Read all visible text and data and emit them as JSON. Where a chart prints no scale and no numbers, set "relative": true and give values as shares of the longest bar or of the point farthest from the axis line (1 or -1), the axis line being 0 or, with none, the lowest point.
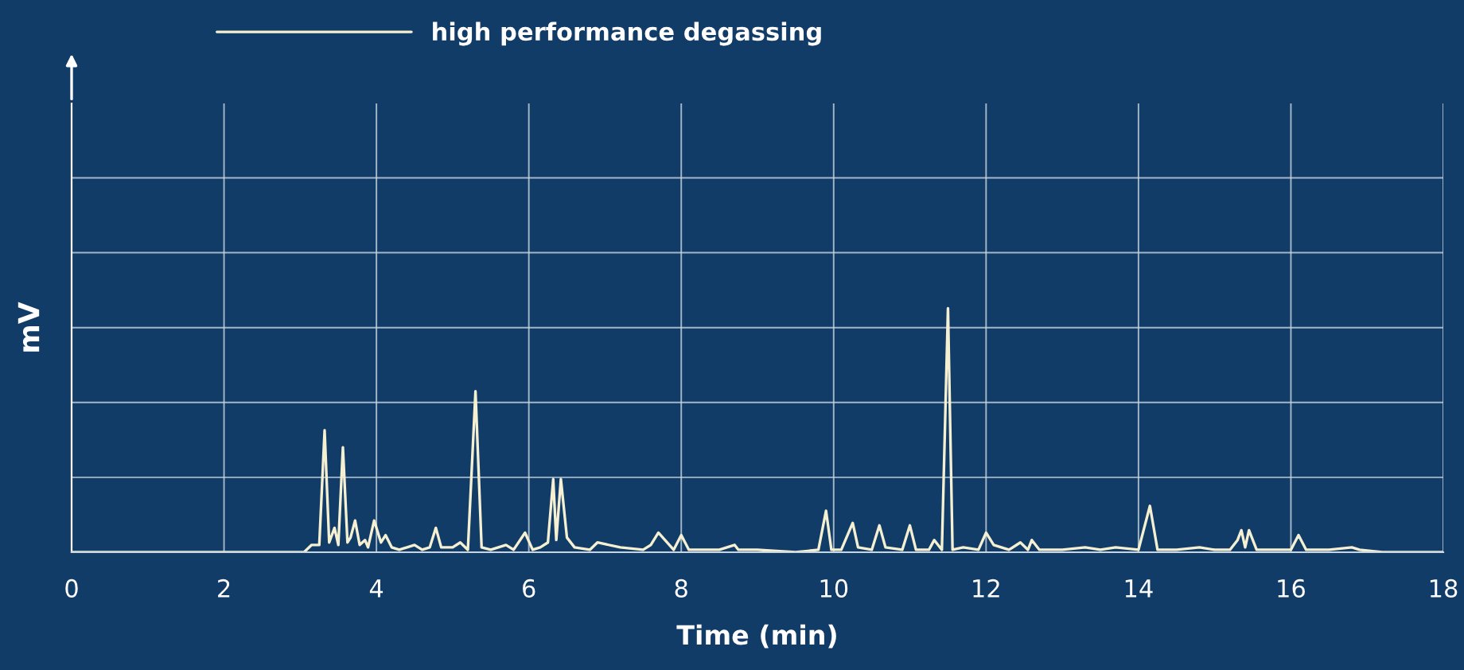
{
  "chart_data": {
    "type": "line",
    "relative": true,
    "xlabel": "Time (min)",
    "ylabel": "mV",
    "xlim": [
      0,
      18
    ],
    "xticks": [
      0,
      2,
      4,
      6,
      8,
      10,
      12,
      14,
      16,
      18
    ],
    "grid": true,
    "legend": "top left",
    "marker": "none",
    "line_style": "solid",
    "series": [
      {
        "name": "high performance degassing",
        "color": "#f5f0d2",
        "x": [
          0,
          3.05,
          3.15,
          3.25,
          3.32,
          3.38,
          3.45,
          3.5,
          3.56,
          3.62,
          3.66,
          3.72,
          3.78,
          3.85,
          3.89,
          3.97,
          4.06,
          4.12,
          4.2,
          4.3,
          4.5,
          4.6,
          4.7,
          4.78,
          4.85,
          5.0,
          5.1,
          5.2,
          5.3,
          5.38,
          5.5,
          5.7,
          5.8,
          5.95,
          6.05,
          6.15,
          6.25,
          6.32,
          6.36,
          6.42,
          6.5,
          6.6,
          6.8,
          6.9,
          7.2,
          7.5,
          7.6,
          7.7,
          7.9,
          8.0,
          8.1,
          8.5,
          8.7,
          8.75,
          9.0,
          9.5,
          9.8,
          9.9,
          9.97,
          10.1,
          10.25,
          10.32,
          10.5,
          10.6,
          10.68,
          10.9,
          11.0,
          11.08,
          11.25,
          11.32,
          11.42,
          11.5,
          11.56,
          11.7,
          11.9,
          12.0,
          12.1,
          12.3,
          12.45,
          12.55,
          12.6,
          12.7,
          13.0,
          13.3,
          13.5,
          13.7,
          14.0,
          14.15,
          14.25,
          14.5,
          14.8,
          15.0,
          15.2,
          15.3,
          15.35,
          15.4,
          15.45,
          15.55,
          15.8,
          16.0,
          16.1,
          16.2,
          16.5,
          16.8,
          16.9,
          17.2,
          18
        ],
        "values": [
          0,
          0,
          0.03,
          0.03,
          0.5,
          0.04,
          0.1,
          0.03,
          0.43,
          0.04,
          0.06,
          0.13,
          0.03,
          0.05,
          0.02,
          0.13,
          0.04,
          0.07,
          0.02,
          0.01,
          0.03,
          0.01,
          0.02,
          0.1,
          0.02,
          0.02,
          0.04,
          0.01,
          0.66,
          0.02,
          0.01,
          0.03,
          0.01,
          0.08,
          0.01,
          0.02,
          0.04,
          0.3,
          0.05,
          0.3,
          0.06,
          0.02,
          0.01,
          0.04,
          0.02,
          0.01,
          0.03,
          0.08,
          0.01,
          0.07,
          0.01,
          0.01,
          0.03,
          0.01,
          0.01,
          0.0,
          0.01,
          0.17,
          0.01,
          0.01,
          0.12,
          0.02,
          0.01,
          0.11,
          0.02,
          0.01,
          0.11,
          0.01,
          0.01,
          0.05,
          0.01,
          1.0,
          0.01,
          0.02,
          0.01,
          0.08,
          0.03,
          0.01,
          0.04,
          0.01,
          0.05,
          0.01,
          0.01,
          0.02,
          0.01,
          0.02,
          0.01,
          0.19,
          0.01,
          0.01,
          0.02,
          0.01,
          0.01,
          0.05,
          0.09,
          0.02,
          0.09,
          0.01,
          0.01,
          0.01,
          0.07,
          0.01,
          0.01,
          0.02,
          0.01,
          0.0,
          0
        ]
      }
    ]
  }
}
